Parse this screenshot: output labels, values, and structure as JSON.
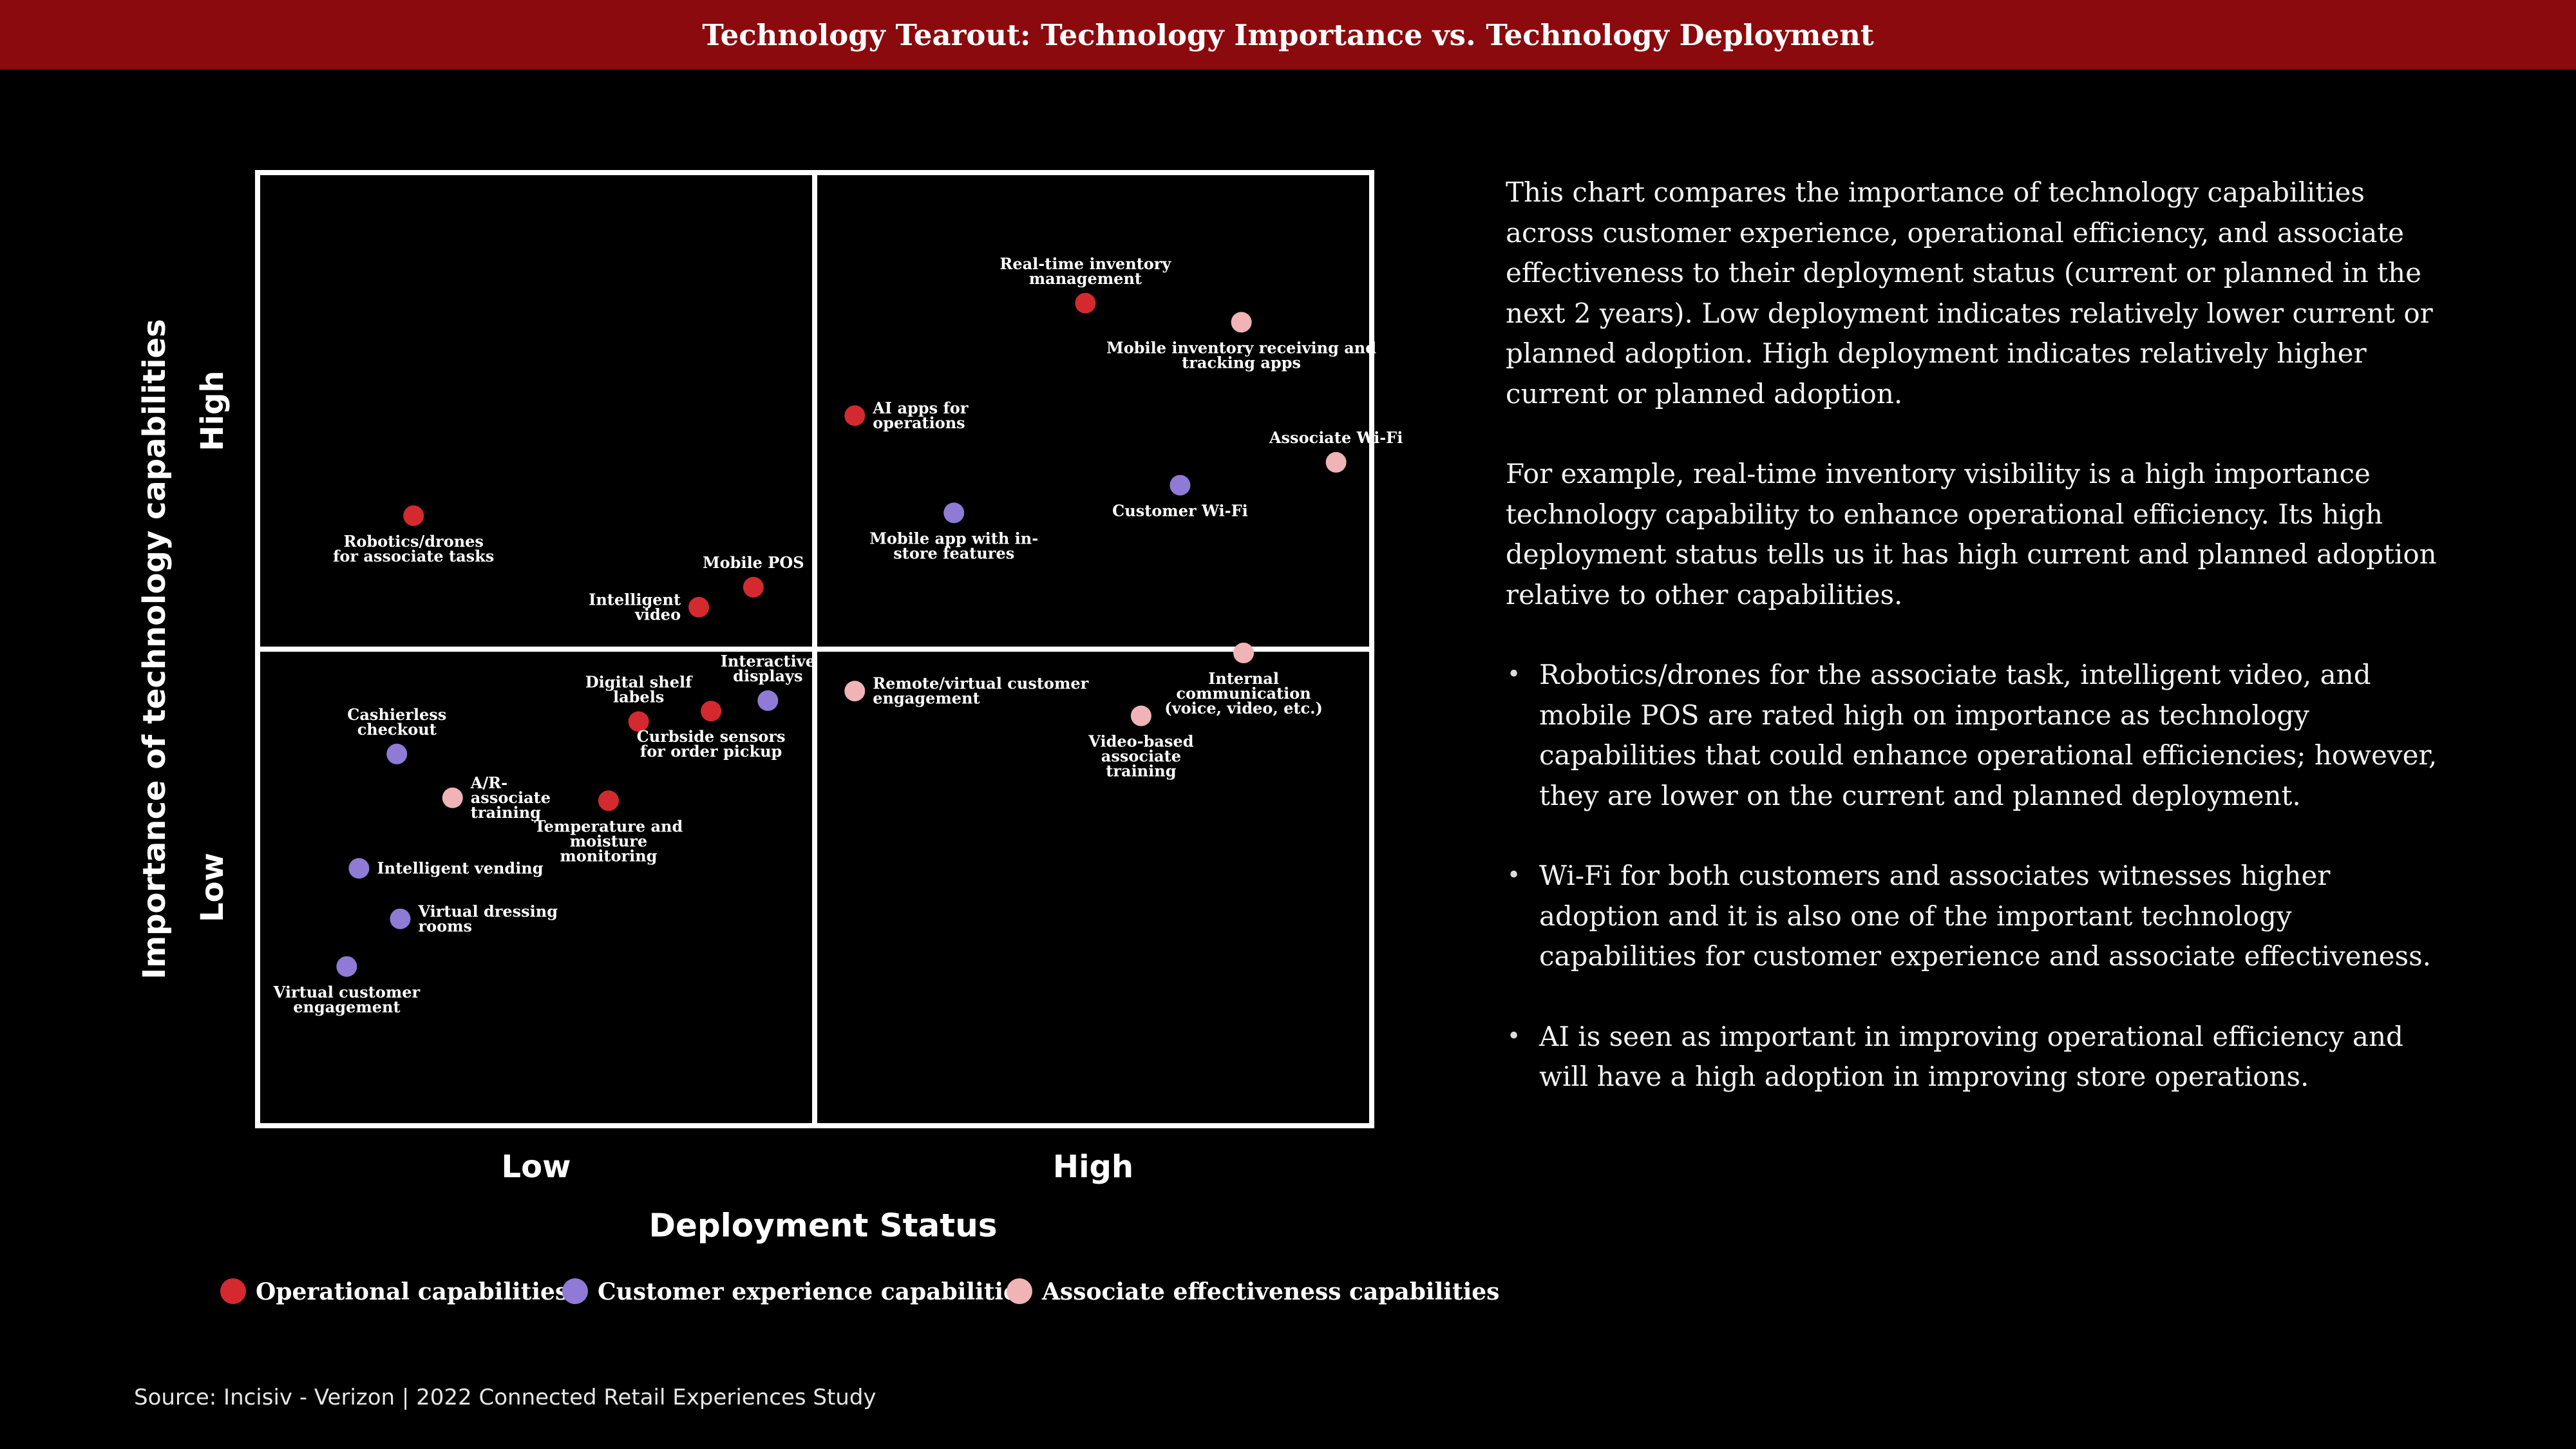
{
  "header": {
    "title": "Technology Tearout: Technology Importance vs. Technology Deployment"
  },
  "description": {
    "paragraphs": [
      "This chart compares the importance of technology capabilities across customer experience, operational efficiency, and associate effectiveness to their deployment status (current or planned in the next 2 years). Low deployment indicates relatively lower current or planned adoption. High deployment indicates relatively higher current or planned adoption.",
      "For example, real-time inventory visibility is a high importance technology capability to enhance operational efficiency. Its high deployment status tells us it has high current and planned adoption relative to other capabilities."
    ],
    "bullets": [
      "Robotics/drones for the associate task, intelligent video, and mobile POS are rated high on importance as technology capabilities that could enhance operational efficiencies; however, they are lower on the current and planned deployment.",
      "Wi-Fi for both customers and associates witnesses higher adoption and it is also one of the important technology capabilities for customer experience and associate effectiveness.",
      "AI is seen as important in improving operational efficiency and will have a high adoption in improving store operations."
    ]
  },
  "source": "Source: Incisiv - Verizon | 2022 Connected Retail Experiences Study",
  "chart_data": {
    "type": "scatter",
    "xlabel": "Deployment Status",
    "ylabel": "Importance of technology capabilities",
    "x_ticks": [
      "Low",
      "High"
    ],
    "y_ticks": [
      "Low",
      "High"
    ],
    "xlim": [
      0,
      100
    ],
    "ylim": [
      0,
      100
    ],
    "grid": "quadrants",
    "legend_position": "bottom",
    "colors": {
      "operational": "#d42a2f",
      "customer": "#8f7ad6",
      "associate": "#f0b3b6"
    },
    "series": [
      {
        "name": "Operational capabilities",
        "key": "operational",
        "points": [
          {
            "label": [
              "Real-time inventory",
              "management"
            ],
            "x": 74.3,
            "y": 86.3,
            "label_pos": "above"
          },
          {
            "label": [
              "AI apps for",
              "operations"
            ],
            "x": 53.6,
            "y": 74.5,
            "label_pos": "right"
          },
          {
            "label": [
              "Robotics/drones",
              "for associate tasks"
            ],
            "x": 14.0,
            "y": 64.0,
            "label_pos": "below"
          },
          {
            "label": [
              "Mobile POS"
            ],
            "x": 44.5,
            "y": 56.5,
            "label_pos": "above"
          },
          {
            "label": [
              "Intelligent",
              "video"
            ],
            "x": 39.6,
            "y": 54.4,
            "label_pos": "left"
          },
          {
            "label": [
              "Digital shelf",
              "labels"
            ],
            "x": 34.2,
            "y": 42.4,
            "label_pos": "above"
          },
          {
            "label": [
              "Curbside sensors",
              "for order pickup"
            ],
            "x": 40.7,
            "y": 43.5,
            "label_pos": "below"
          },
          {
            "label": [
              "Temperature and",
              "moisture",
              "monitoring"
            ],
            "x": 31.5,
            "y": 34.1,
            "label_pos": "below"
          }
        ]
      },
      {
        "name": "Customer experience capabilities",
        "key": "customer",
        "points": [
          {
            "label": [
              "Customer Wi-Fi"
            ],
            "x": 82.8,
            "y": 67.2,
            "label_pos": "below"
          },
          {
            "label": [
              "Mobile app with in-",
              "store features"
            ],
            "x": 62.5,
            "y": 64.3,
            "label_pos": "below"
          },
          {
            "label": [
              "Interactive",
              "displays"
            ],
            "x": 45.8,
            "y": 44.6,
            "label_pos": "above"
          },
          {
            "label": [
              "Cashierless",
              "checkout"
            ],
            "x": 12.5,
            "y": 39.0,
            "label_pos": "above"
          },
          {
            "label": [
              "Intelligent vending"
            ],
            "x": 9.1,
            "y": 27.0,
            "label_pos": "right"
          },
          {
            "label": [
              "Virtual dressing",
              "rooms"
            ],
            "x": 12.8,
            "y": 21.7,
            "label_pos": "right"
          },
          {
            "label": [
              "Virtual customer",
              "engagement"
            ],
            "x": 8.0,
            "y": 16.7,
            "label_pos": "below"
          }
        ]
      },
      {
        "name": "Associate effectiveness capabilities",
        "key": "associate",
        "points": [
          {
            "label": [
              "Mobile inventory receiving and",
              "tracking apps"
            ],
            "x": 88.3,
            "y": 84.3,
            "label_pos": "below"
          },
          {
            "label": [
              "Associate Wi-Fi"
            ],
            "x": 96.8,
            "y": 69.6,
            "label_pos": "above"
          },
          {
            "label": [
              "Internal",
              "communication",
              "(voice, video, etc.)"
            ],
            "x": 88.5,
            "y": 49.6,
            "label_pos": "below"
          },
          {
            "label": [
              "Remote/virtual customer",
              "engagement"
            ],
            "x": 53.6,
            "y": 45.6,
            "label_pos": "right"
          },
          {
            "label": [
              "Video-based",
              "associate",
              "training"
            ],
            "x": 79.3,
            "y": 43.0,
            "label_pos": "below"
          },
          {
            "label": [
              "A/R-",
              "associate",
              "training"
            ],
            "x": 17.5,
            "y": 34.4,
            "label_pos": "right"
          }
        ]
      }
    ]
  }
}
